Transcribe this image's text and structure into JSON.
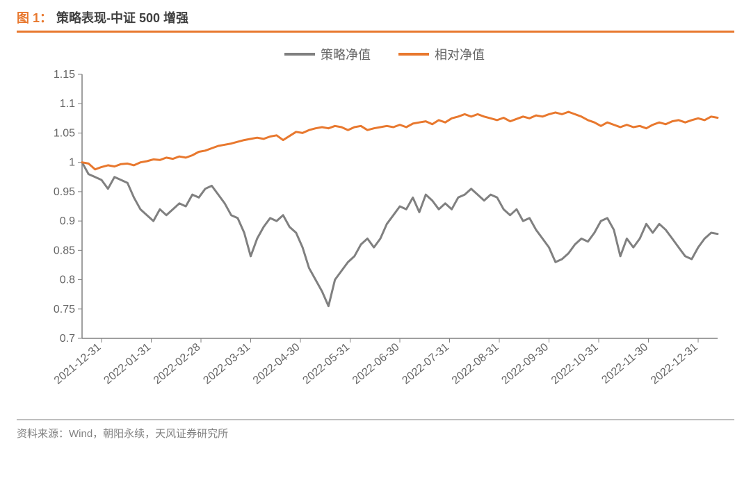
{
  "figure": {
    "label": "图 1：",
    "title": "策略表现-中证 500 增强",
    "source": "资料来源：Wind，朝阳永续，天风证券研究所"
  },
  "chart": {
    "type": "line",
    "background_color": "#ffffff",
    "rule_color_top": "#e8782e",
    "rule_color_bottom": "#bfbfbf",
    "axis_color": "#808080",
    "tick_font_size": 16,
    "tick_color": "#666666",
    "line_width": 3,
    "ylim": [
      0.7,
      1.15
    ],
    "ytick_step": 0.05,
    "yticks": [
      0.7,
      0.75,
      0.8,
      0.85,
      0.9,
      0.95,
      1.0,
      1.05,
      1.1,
      1.15
    ],
    "xticks": [
      "2021-12-31",
      "2022-01-31",
      "2022-02-28",
      "2022-03-31",
      "2022-04-30",
      "2022-05-31",
      "2022-06-30",
      "2022-07-31",
      "2022-08-31",
      "2022-09-30",
      "2022-10-31",
      "2022-11-30",
      "2022-12-31"
    ],
    "legend": {
      "items": [
        {
          "label": "策略净值",
          "color": "#808080"
        },
        {
          "label": "相对净值",
          "color": "#e8782e"
        }
      ]
    },
    "series": [
      {
        "name": "策略净值",
        "color": "#808080",
        "values": [
          1.0,
          0.98,
          0.975,
          0.97,
          0.955,
          0.975,
          0.97,
          0.965,
          0.94,
          0.92,
          0.91,
          0.9,
          0.92,
          0.91,
          0.92,
          0.93,
          0.925,
          0.945,
          0.94,
          0.955,
          0.96,
          0.945,
          0.93,
          0.91,
          0.905,
          0.88,
          0.84,
          0.87,
          0.89,
          0.905,
          0.9,
          0.91,
          0.89,
          0.88,
          0.855,
          0.82,
          0.8,
          0.78,
          0.755,
          0.8,
          0.815,
          0.83,
          0.84,
          0.86,
          0.87,
          0.855,
          0.87,
          0.895,
          0.91,
          0.925,
          0.92,
          0.94,
          0.915,
          0.945,
          0.935,
          0.92,
          0.93,
          0.92,
          0.94,
          0.945,
          0.955,
          0.945,
          0.935,
          0.945,
          0.94,
          0.92,
          0.91,
          0.92,
          0.9,
          0.905,
          0.885,
          0.87,
          0.855,
          0.83,
          0.835,
          0.845,
          0.86,
          0.87,
          0.865,
          0.88,
          0.9,
          0.905,
          0.885,
          0.84,
          0.87,
          0.855,
          0.87,
          0.895,
          0.88,
          0.895,
          0.885,
          0.87,
          0.855,
          0.84,
          0.835,
          0.855,
          0.87,
          0.88,
          0.878
        ]
      },
      {
        "name": "相对净值",
        "color": "#e8782e",
        "values": [
          1.0,
          0.998,
          0.988,
          0.992,
          0.995,
          0.993,
          0.997,
          0.998,
          0.995,
          1.0,
          1.002,
          1.005,
          1.004,
          1.008,
          1.006,
          1.01,
          1.008,
          1.012,
          1.018,
          1.02,
          1.024,
          1.028,
          1.03,
          1.032,
          1.035,
          1.038,
          1.04,
          1.042,
          1.04,
          1.044,
          1.046,
          1.038,
          1.045,
          1.052,
          1.05,
          1.055,
          1.058,
          1.06,
          1.058,
          1.062,
          1.06,
          1.055,
          1.06,
          1.062,
          1.055,
          1.058,
          1.06,
          1.062,
          1.06,
          1.064,
          1.06,
          1.066,
          1.068,
          1.07,
          1.065,
          1.072,
          1.068,
          1.075,
          1.078,
          1.082,
          1.078,
          1.082,
          1.078,
          1.075,
          1.072,
          1.076,
          1.07,
          1.074,
          1.078,
          1.075,
          1.08,
          1.078,
          1.082,
          1.085,
          1.082,
          1.086,
          1.082,
          1.078,
          1.072,
          1.068,
          1.062,
          1.068,
          1.064,
          1.06,
          1.064,
          1.06,
          1.062,
          1.058,
          1.064,
          1.068,
          1.065,
          1.07,
          1.072,
          1.068,
          1.072,
          1.075,
          1.072,
          1.078,
          1.076
        ]
      }
    ]
  }
}
